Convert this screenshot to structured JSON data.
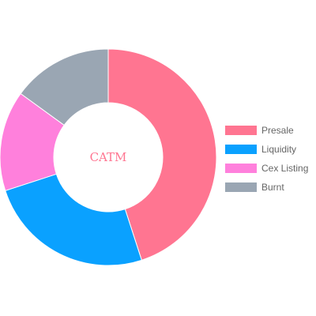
{
  "chart_data": {
    "type": "doughnut",
    "center_label": "CATM",
    "categories": [
      "Presale",
      "Liquidity",
      "Cex Listing",
      "Burnt"
    ],
    "values": [
      45,
      25,
      15,
      15
    ],
    "colors": [
      "#ff7591",
      "#0aa1ff",
      "#ff80dc",
      "#9aa6b3"
    ],
    "center_label_color": "#ff7591",
    "start_angle_deg": 0,
    "direction": "clockwise",
    "legend_position": "right"
  }
}
